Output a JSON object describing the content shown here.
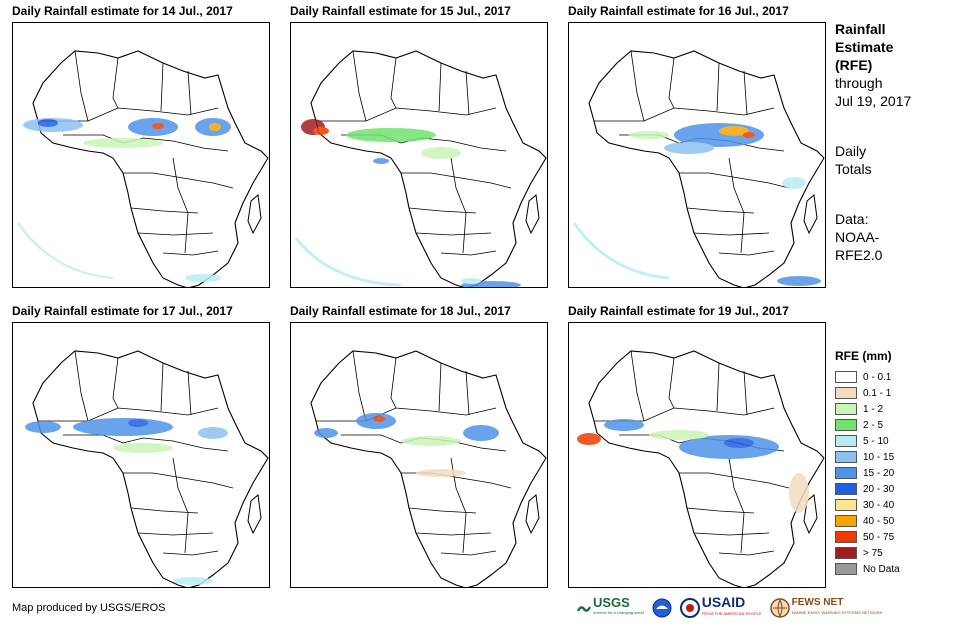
{
  "panels": [
    {
      "title": "Daily Rainfall estimate for 14 Jul., 2017"
    },
    {
      "title": "Daily Rainfall estimate for 15 Jul., 2017"
    },
    {
      "title": "Daily Rainfall estimate for 16 Jul., 2017"
    },
    {
      "title": "Daily Rainfall estimate for 17 Jul., 2017"
    },
    {
      "title": "Daily Rainfall estimate for 18 Jul., 2017"
    },
    {
      "title": "Daily Rainfall estimate for 19 Jul., 2017"
    }
  ],
  "sidebar": {
    "heading_line1": "Rainfall",
    "heading_line2": "Estimate",
    "heading_line3": "(RFE)",
    "through_label": "through",
    "through_date": "Jul 19, 2017",
    "totals_line1": "Daily",
    "totals_line2": "Totals",
    "data_line1": "Data:",
    "data_line2": "NOAA-",
    "data_line3": "RFE2.0"
  },
  "legend": {
    "title": "RFE (mm)",
    "items": [
      {
        "label": "0 - 0.1",
        "color": "#ffffff"
      },
      {
        "label": "0.1 - 1",
        "color": "#f2dcc0"
      },
      {
        "label": "1 - 2",
        "color": "#c9f5b8"
      },
      {
        "label": "2 - 5",
        "color": "#6fe36f"
      },
      {
        "label": "5 - 10",
        "color": "#b8ecf5"
      },
      {
        "label": "10 - 15",
        "color": "#8cc1f0"
      },
      {
        "label": "15 - 20",
        "color": "#4f93e8"
      },
      {
        "label": "20 - 30",
        "color": "#1f5fe0"
      },
      {
        "label": "30 - 40",
        "color": "#fde68c"
      },
      {
        "label": "40 - 50",
        "color": "#f5a400"
      },
      {
        "label": "50 - 75",
        "color": "#f03c00"
      },
      {
        "label": "> 75",
        "color": "#a01e1e"
      },
      {
        "label": "No Data",
        "color": "#999999"
      }
    ]
  },
  "footer": {
    "credit": "Map produced by USGS/EROS"
  },
  "logos": {
    "usgs": "USGS",
    "usgs_tagline": "science for a changing world",
    "usaid": "USAID",
    "usaid_tagline": "FROM THE AMERICAN PEOPLE",
    "fewsnet": "FEWS NET",
    "fewsnet_tagline": "FAMINE EARLY WARNING SYSTEMS NETWORK"
  }
}
